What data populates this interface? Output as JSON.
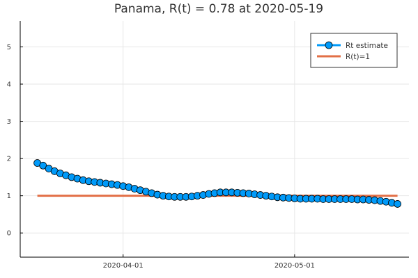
{
  "chart_data": {
    "type": "line",
    "title": "Panama, R(t) = 0.78 at 2020-05-19",
    "xlabel": "",
    "ylabel": "",
    "x_start": "2020-03-17",
    "x_end": "2020-05-19",
    "xlim": [
      "2020-03-14",
      "2020-05-21"
    ],
    "ylim": [
      -0.65,
      5.7
    ],
    "x_ticks": [
      {
        "value": "2020-04-01",
        "label": "2020-04-01"
      },
      {
        "value": "2020-05-01",
        "label": "2020-05-01"
      }
    ],
    "y_ticks": [
      {
        "value": 0,
        "label": "0"
      },
      {
        "value": 1,
        "label": "1"
      },
      {
        "value": 2,
        "label": "2"
      },
      {
        "value": 3,
        "label": "3"
      },
      {
        "value": 4,
        "label": "4"
      },
      {
        "value": 5,
        "label": "5"
      }
    ],
    "grid": true,
    "legend_position": "top-right",
    "series": [
      {
        "name": "Rt estimate",
        "color": "#009af9",
        "marker": "circle",
        "line": true,
        "dates": [
          "2020-03-17",
          "2020-03-18",
          "2020-03-19",
          "2020-03-20",
          "2020-03-21",
          "2020-03-22",
          "2020-03-23",
          "2020-03-24",
          "2020-03-25",
          "2020-03-26",
          "2020-03-27",
          "2020-03-28",
          "2020-03-29",
          "2020-03-30",
          "2020-03-31",
          "2020-04-01",
          "2020-04-02",
          "2020-04-03",
          "2020-04-04",
          "2020-04-05",
          "2020-04-06",
          "2020-04-07",
          "2020-04-08",
          "2020-04-09",
          "2020-04-10",
          "2020-04-11",
          "2020-04-12",
          "2020-04-13",
          "2020-04-14",
          "2020-04-15",
          "2020-04-16",
          "2020-04-17",
          "2020-04-18",
          "2020-04-19",
          "2020-04-20",
          "2020-04-21",
          "2020-04-22",
          "2020-04-23",
          "2020-04-24",
          "2020-04-25",
          "2020-04-26",
          "2020-04-27",
          "2020-04-28",
          "2020-04-29",
          "2020-04-30",
          "2020-05-01",
          "2020-05-02",
          "2020-05-03",
          "2020-05-04",
          "2020-05-05",
          "2020-05-06",
          "2020-05-07",
          "2020-05-08",
          "2020-05-09",
          "2020-05-10",
          "2020-05-11",
          "2020-05-12",
          "2020-05-13",
          "2020-05-14",
          "2020-05-15",
          "2020-05-16",
          "2020-05-17",
          "2020-05-18",
          "2020-05-19"
        ],
        "values": [
          1.88,
          1.81,
          1.73,
          1.66,
          1.6,
          1.55,
          1.5,
          1.46,
          1.42,
          1.39,
          1.37,
          1.35,
          1.33,
          1.31,
          1.29,
          1.26,
          1.23,
          1.19,
          1.15,
          1.11,
          1.07,
          1.03,
          1.0,
          0.98,
          0.97,
          0.97,
          0.97,
          0.98,
          1.0,
          1.02,
          1.05,
          1.07,
          1.09,
          1.09,
          1.09,
          1.08,
          1.07,
          1.06,
          1.04,
          1.02,
          1.0,
          0.98,
          0.96,
          0.95,
          0.94,
          0.93,
          0.92,
          0.92,
          0.92,
          0.92,
          0.91,
          0.91,
          0.91,
          0.91,
          0.91,
          0.91,
          0.9,
          0.9,
          0.89,
          0.88,
          0.86,
          0.84,
          0.81,
          0.78
        ]
      },
      {
        "name": "R(t)=1",
        "color": "#e26f46",
        "marker": "none",
        "line": true,
        "dates": [
          "2020-03-17",
          "2020-05-19"
        ],
        "values": [
          1,
          1
        ]
      }
    ]
  }
}
